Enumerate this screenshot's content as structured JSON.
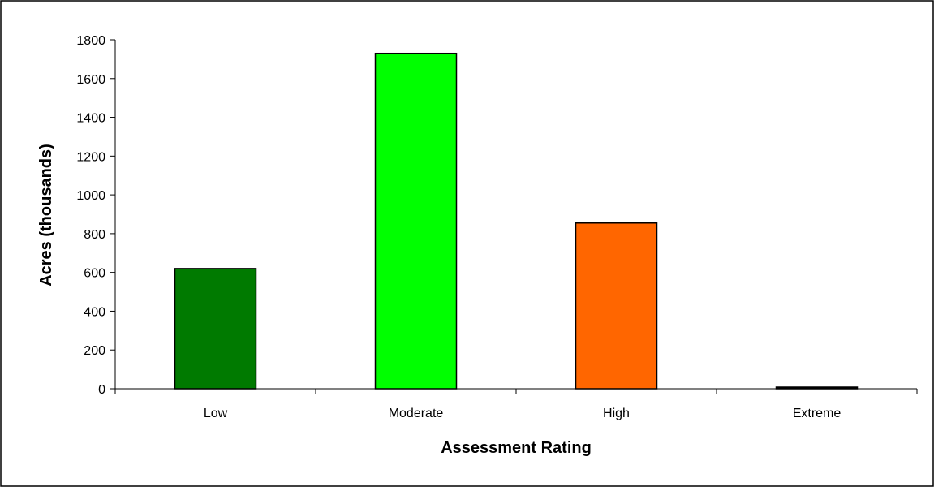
{
  "chart_data": {
    "type": "bar",
    "categories": [
      "Low",
      "Moderate",
      "High",
      "Extreme"
    ],
    "values": [
      620,
      1730,
      855,
      5
    ],
    "colors": [
      "#007A00",
      "#00FF00",
      "#FF6600",
      "#000000"
    ],
    "xlabel": "Assessment Rating",
    "ylabel": "Acres (thousands)",
    "ylim": [
      0,
      1800
    ],
    "yticks": [
      0,
      200,
      400,
      600,
      800,
      1000,
      1200,
      1400,
      1600,
      1800
    ],
    "grid": false,
    "legend": "none"
  }
}
